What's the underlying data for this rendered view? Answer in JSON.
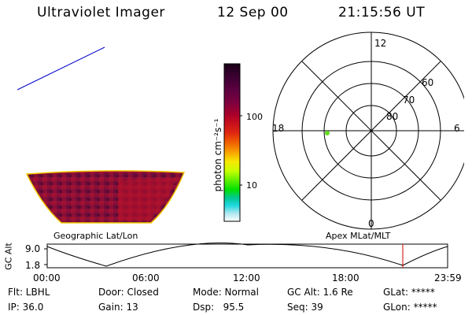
{
  "header": {
    "title": "Ultraviolet Imager",
    "date": "12 Sep 00",
    "time": "21:15:56 UT"
  },
  "colorbar": {
    "unit_label": "photon cm⁻²s⁻¹",
    "ticks": [
      "100",
      "10"
    ],
    "colors": [
      "#1a0018",
      "#3a0030",
      "#5a0040",
      "#7a0040",
      "#a8002c",
      "#c8101c",
      "#e02810",
      "#f06000",
      "#f8a000",
      "#f8e800",
      "#c8ff00",
      "#60f000",
      "#00e000",
      "#00c890",
      "#20d8e0",
      "#b0e8f0",
      "#ffffff"
    ]
  },
  "polar_plot": {
    "mlt_labels": {
      "top": "12",
      "left": "18",
      "right": "6",
      "bottom": "0"
    },
    "lat_labels": [
      "60",
      "70",
      "80"
    ],
    "marker_color": "#66dd22"
  },
  "panels": {
    "geographic_label": "Geographic Lat/Lon",
    "apex_label": "Apex MLat/MLT"
  },
  "altitude_plot": {
    "axis_title": "GC Alt",
    "y_ticks": [
      "9.0",
      "1.8"
    ],
    "x_ticks": [
      "00:00",
      "06:00",
      "12:00",
      "18:00",
      "23:59"
    ],
    "marker_color": "#cc0000"
  },
  "status": {
    "filter": "Flt: LBHL",
    "ip": "IP: 36.0",
    "door": "Door: Closed",
    "gain": "Gain: 13",
    "mode": "Mode: Normal",
    "dsp": "Dsp:   95.5",
    "gc_alt": "GC Alt: 1.6 Re",
    "seq": "Seq: 39",
    "glat": "GLat: *****",
    "glon": "GLon: *****"
  }
}
